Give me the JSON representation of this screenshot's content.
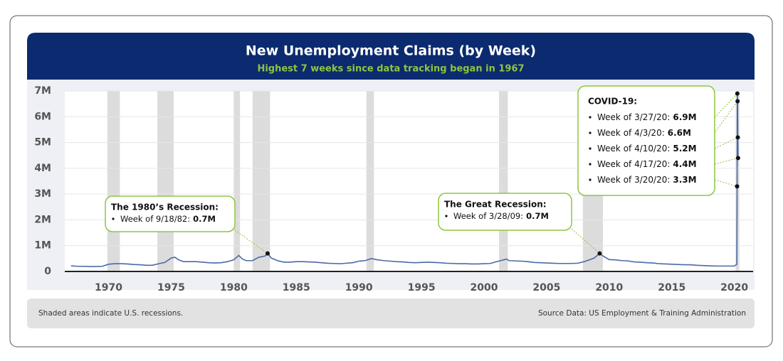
{
  "chart_data": {
    "type": "line",
    "title": "New Unemployment Claims (by Week)",
    "subtitle": "Highest 7 weeks since data tracking began in 1967",
    "footnote": "Shaded areas indicate U.S. recessions.",
    "source": "Source Data: US Employment & Training Administration",
    "xlim": [
      1966.5,
      2021.5
    ],
    "xticks": [
      1970,
      1975,
      1980,
      1985,
      1990,
      1995,
      2000,
      2005,
      2010,
      2015,
      2020
    ],
    "ylim": [
      0,
      7
    ],
    "yticks": [
      0,
      {
        "value": 1,
        "label": "1M"
      },
      {
        "value": 2,
        "label": "2M"
      },
      {
        "value": 3,
        "label": "3M"
      },
      {
        "value": 4,
        "label": "4M"
      },
      {
        "value": 5,
        "label": "5M"
      },
      {
        "value": 6,
        "label": "6M"
      },
      {
        "value": 7,
        "label": "7M"
      }
    ],
    "grid": true,
    "recessions": [
      [
        1969.9,
        1970.9
      ],
      [
        1973.9,
        1975.2
      ],
      [
        1980.0,
        1980.5
      ],
      [
        1981.5,
        1982.9
      ],
      [
        1990.6,
        1991.2
      ],
      [
        2001.2,
        2001.9
      ],
      [
        2007.9,
        2009.5
      ],
      [
        2020.1,
        2020.4
      ]
    ],
    "recession_color": "#dcdcdc",
    "series": [
      {
        "color": "#4a6aa5",
        "x": [
          1967,
          1967.5,
          1968,
          1968.5,
          1969,
          1969.5,
          1970,
          1970.5,
          1971,
          1971.5,
          1972,
          1972.5,
          1973,
          1973.5,
          1974,
          1974.5,
          1975,
          1975.3,
          1975.6,
          1976,
          1976.5,
          1977,
          1977.5,
          1978,
          1978.5,
          1979,
          1979.5,
          1980,
          1980.4,
          1980.7,
          1981,
          1981.5,
          1982,
          1982.5,
          1982.71,
          1983,
          1983.5,
          1984,
          1984.5,
          1985,
          1985.5,
          1986,
          1986.5,
          1987,
          1987.5,
          1988,
          1988.5,
          1989,
          1989.5,
          1990,
          1990.5,
          1991,
          1991.5,
          1992,
          1992.5,
          1993,
          1993.5,
          1994,
          1994.5,
          1995,
          1995.5,
          1996,
          1996.5,
          1997,
          1997.5,
          1998,
          1998.5,
          1999,
          1999.5,
          2000,
          2000.5,
          2001,
          2001.8,
          2002,
          2002.5,
          2003,
          2003.5,
          2004,
          2004.5,
          2005,
          2005.5,
          2006,
          2006.5,
          2007,
          2007.5,
          2008,
          2008.8,
          2009.24,
          2009.5,
          2010,
          2010.5,
          2011,
          2011.5,
          2012,
          2012.5,
          2013,
          2013.5,
          2014,
          2014.5,
          2015,
          2015.5,
          2016,
          2016.5,
          2017,
          2017.5,
          2018,
          2018.5,
          2019,
          2019.5,
          2020,
          2020.2,
          2020.22,
          2020.24,
          2020.26,
          2020.28,
          2020.3
        ],
        "values": [
          0.22,
          0.2,
          0.2,
          0.19,
          0.19,
          0.2,
          0.28,
          0.3,
          0.3,
          0.29,
          0.27,
          0.26,
          0.24,
          0.24,
          0.3,
          0.35,
          0.52,
          0.55,
          0.45,
          0.38,
          0.38,
          0.38,
          0.36,
          0.34,
          0.33,
          0.34,
          0.38,
          0.45,
          0.62,
          0.48,
          0.42,
          0.42,
          0.55,
          0.6,
          0.7,
          0.52,
          0.42,
          0.36,
          0.36,
          0.38,
          0.38,
          0.37,
          0.36,
          0.34,
          0.32,
          0.31,
          0.3,
          0.32,
          0.34,
          0.4,
          0.42,
          0.5,
          0.45,
          0.42,
          0.4,
          0.38,
          0.37,
          0.35,
          0.34,
          0.35,
          0.36,
          0.35,
          0.34,
          0.32,
          0.31,
          0.3,
          0.3,
          0.29,
          0.29,
          0.3,
          0.31,
          0.38,
          0.48,
          0.42,
          0.41,
          0.4,
          0.38,
          0.35,
          0.34,
          0.33,
          0.32,
          0.31,
          0.31,
          0.31,
          0.32,
          0.38,
          0.52,
          0.7,
          0.6,
          0.46,
          0.45,
          0.42,
          0.41,
          0.37,
          0.36,
          0.34,
          0.33,
          0.3,
          0.29,
          0.28,
          0.27,
          0.26,
          0.26,
          0.24,
          0.23,
          0.22,
          0.21,
          0.21,
          0.21,
          0.21,
          0.28,
          3.3,
          6.9,
          6.6,
          5.2,
          4.4
        ]
      }
    ],
    "annotations": [
      {
        "title": "The 1980’s Recession:",
        "items": [
          {
            "text": "Week of 9/18/82:",
            "value": 0.7,
            "value_label": "0.7M",
            "x": 1982.71
          }
        ]
      },
      {
        "title": "The Great Recession:",
        "items": [
          {
            "text": "Week of 3/28/09:",
            "value": 0.7,
            "value_label": "0.7M",
            "x": 2009.24
          }
        ]
      },
      {
        "title": "COVID-19:",
        "items": [
          {
            "text": "Week of 3/27/20:",
            "value": 6.9,
            "value_label": "6.9M",
            "x": 2020.24
          },
          {
            "text": "Week of 4/3/20:",
            "value": 6.6,
            "value_label": "6.6M",
            "x": 2020.26
          },
          {
            "text": "Week of 4/10/20:",
            "value": 5.2,
            "value_label": "5.2M",
            "x": 2020.28
          },
          {
            "text": "Week of 4/17/20:",
            "value": 4.4,
            "value_label": "4.4M",
            "x": 2020.3
          },
          {
            "text": "Week of 3/20/20:",
            "value": 3.3,
            "value_label": "3.3M",
            "x": 2020.22
          }
        ]
      }
    ]
  }
}
